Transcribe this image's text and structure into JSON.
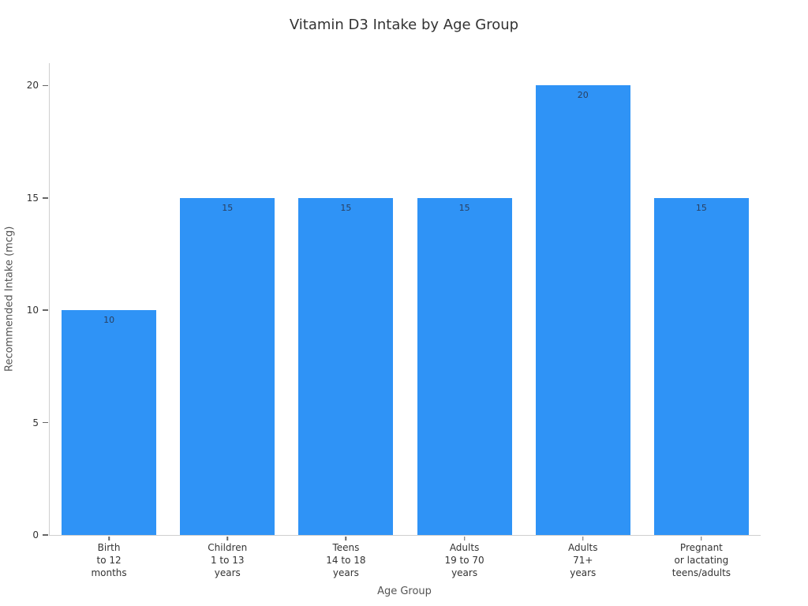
{
  "chart_data": {
    "type": "bar",
    "title": "Vitamin D3 Intake by Age Group",
    "xlabel": "Age Group",
    "ylabel": "Recommended Intake (mcg)",
    "categories": [
      "Birth\nto 12\nmonths",
      "Children\n1 to 13\nyears",
      "Teens\n14 to 18\nyears",
      "Adults\n19 to 70\nyears",
      "Adults\n71+\nyears",
      "Pregnant\nor lactating\nteens/adults"
    ],
    "values": [
      10,
      15,
      15,
      15,
      20,
      15
    ],
    "bar_labels": [
      "10",
      "15",
      "15",
      "15",
      "20",
      "15"
    ],
    "yticks": [
      0,
      5,
      10,
      15,
      20
    ],
    "ylim": [
      0,
      21
    ],
    "grid": false,
    "legend": null,
    "colors": {
      "bar": "#2f93f6",
      "bar_label_text": "#2a3f5f",
      "tick_text": "#333333",
      "axis_title_text": "#545454",
      "title_text": "#333333",
      "axis_line": "#cfcfcf"
    }
  }
}
